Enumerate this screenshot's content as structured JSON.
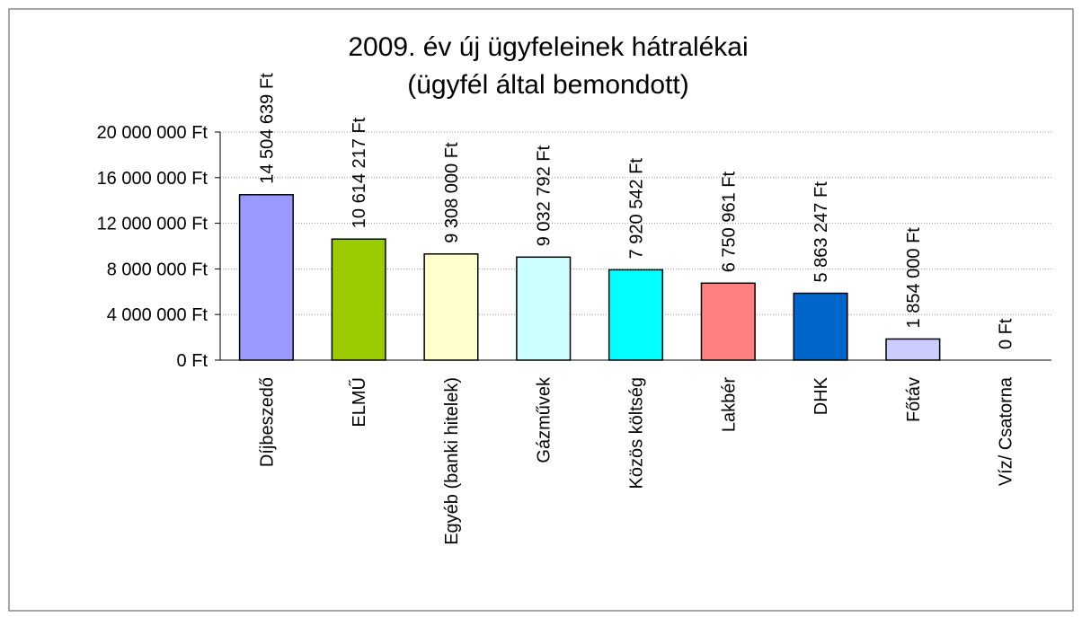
{
  "chart_data": {
    "type": "bar",
    "title": "2009. év új ügyfeleinek hátralékai",
    "subtitle": "(ügyfél által bemondott)",
    "categories": [
      "Díjbeszedő",
      "ELMŰ",
      "Egyéb (banki hitelek)",
      "Gázművek",
      "Közös költség",
      "Lakbér",
      "DHK",
      "Főtáv",
      "Víz/ Csatorna"
    ],
    "values": [
      14504639,
      10614217,
      9308000,
      9032792,
      7920542,
      6750961,
      5863247,
      1854000,
      0
    ],
    "value_labels": [
      "14 504 639 Ft",
      "10 614 217 Ft",
      "9 308 000 Ft",
      "9 032 792 Ft",
      "7 920 542 Ft",
      "6 750 961 Ft",
      "5 863 247 Ft",
      "1 854 000 Ft",
      "0 Ft"
    ],
    "colors": [
      "#9999ff",
      "#99cc00",
      "#ffffcc",
      "#ccffff",
      "#00ffff",
      "#ff8080",
      "#0066cc",
      "#ccccff",
      "#9999ff"
    ],
    "ylim": [
      0,
      20000000
    ],
    "yticks": [
      {
        "value": 0,
        "label": "0 Ft"
      },
      {
        "value": 4000000,
        "label": "4 000 000 Ft"
      },
      {
        "value": 8000000,
        "label": "8 000 000 Ft"
      },
      {
        "value": 12000000,
        "label": "12 000 000 Ft"
      },
      {
        "value": 16000000,
        "label": "16 000 000 Ft"
      },
      {
        "value": 20000000,
        "label": "20 000 000 Ft"
      }
    ],
    "grid": true
  }
}
